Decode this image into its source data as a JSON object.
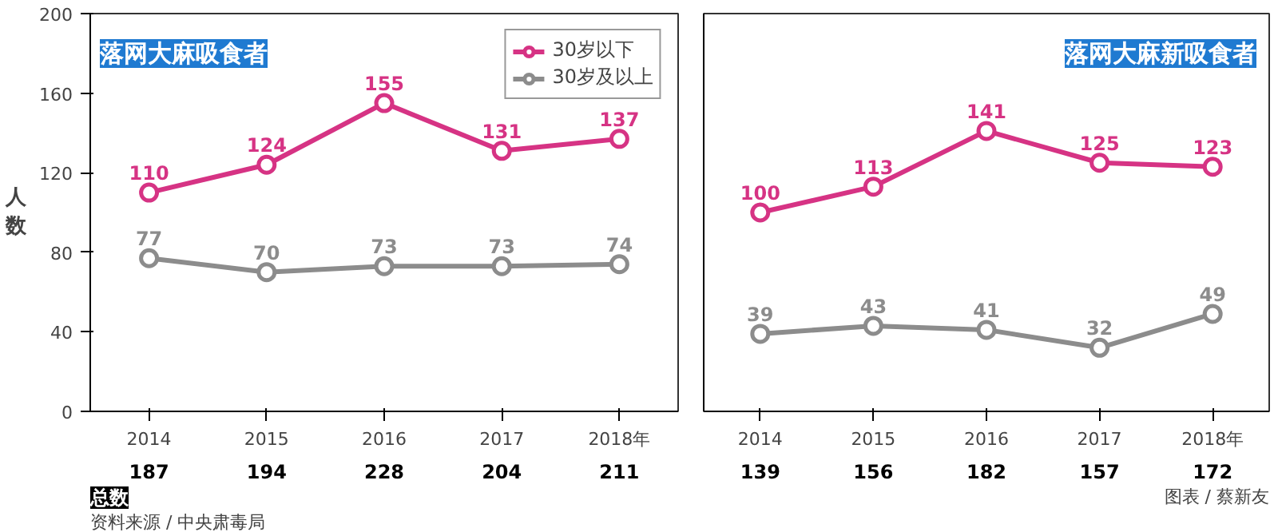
{
  "chart_data": [
    {
      "type": "line",
      "title": "落网大麻吸食者",
      "ylabel": "人数",
      "categories": [
        "2014",
        "2015",
        "2016",
        "2017",
        "2018年"
      ],
      "ylim": [
        0,
        200
      ],
      "yticks": [
        0,
        40,
        80,
        120,
        160,
        200
      ],
      "marker": "circle",
      "legend": "top right",
      "data_labels": true,
      "series": [
        {
          "name": "30岁以下",
          "color": "#d63384",
          "values": [
            110,
            124,
            155,
            131,
            137
          ]
        },
        {
          "name": "30岁及以上",
          "color": "#8c8c8c",
          "values": [
            77,
            70,
            73,
            73,
            74
          ]
        }
      ],
      "totals": [
        "187",
        "194",
        "228",
        "204",
        "211"
      ],
      "annotations": [
        "总数",
        "资料来源 / 中央肃毒局"
      ]
    },
    {
      "type": "line",
      "title": "落网大麻新吸食者",
      "categories": [
        "2014",
        "2015",
        "2016",
        "2017",
        "2018年"
      ],
      "ylim": [
        0,
        200
      ],
      "yticks": [
        0,
        40,
        80,
        120,
        160,
        200
      ],
      "tick_labels": "x",
      "marker": "circle",
      "data_labels": true,
      "series": [
        {
          "color": "#d63384",
          "values": [
            100,
            113,
            141,
            125,
            123
          ]
        },
        {
          "color": "#8c8c8c",
          "values": [
            39,
            43,
            41,
            32,
            49
          ]
        }
      ],
      "totals": [
        "139",
        "156",
        "182",
        "157",
        "172"
      ],
      "annotations": [
        "图表 / 蔡新友"
      ]
    }
  ]
}
